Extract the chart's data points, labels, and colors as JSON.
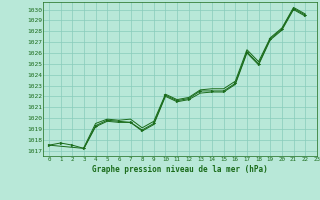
{
  "title": "Graphe pression niveau de la mer (hPa)",
  "bg_color": "#b8e8d8",
  "grid_color": "#88ccbb",
  "line_color": "#1a6b1a",
  "marker_color": "#1a6b1a",
  "xlim": [
    -0.5,
    23
  ],
  "ylim": [
    1016.5,
    1030.7
  ],
  "xticks": [
    0,
    1,
    2,
    3,
    4,
    5,
    6,
    7,
    8,
    9,
    10,
    11,
    12,
    13,
    14,
    15,
    16,
    17,
    18,
    19,
    20,
    21,
    22,
    23
  ],
  "yticks": [
    1017,
    1018,
    1019,
    1020,
    1021,
    1022,
    1023,
    1024,
    1025,
    1026,
    1027,
    1028,
    1029,
    1030
  ],
  "series1_x": [
    0,
    1,
    2,
    3,
    4,
    5,
    6,
    7,
    8,
    9,
    10,
    11,
    12,
    13,
    14,
    15,
    16,
    17,
    18,
    19,
    20,
    21,
    22
  ],
  "series1_y": [
    1017.5,
    1017.7,
    1017.5,
    1017.2,
    1019.3,
    1019.8,
    1019.7,
    1019.6,
    1018.9,
    1019.5,
    1022.1,
    1021.6,
    1021.8,
    1022.5,
    1022.5,
    1022.5,
    1023.2,
    1026.1,
    1025.0,
    1027.3,
    1028.2,
    1030.1,
    1029.5
  ],
  "series2_x": [
    3,
    4,
    5,
    6,
    7,
    8,
    9,
    10,
    11,
    12,
    13,
    14,
    15,
    16,
    17,
    18,
    19,
    20,
    21,
    22
  ],
  "series2_y": [
    1017.3,
    1019.5,
    1019.9,
    1019.8,
    1019.9,
    1019.1,
    1019.7,
    1022.2,
    1021.7,
    1021.9,
    1022.6,
    1022.7,
    1022.7,
    1023.4,
    1026.3,
    1025.2,
    1027.4,
    1028.3,
    1030.2,
    1029.6
  ],
  "series3_x": [
    0,
    3,
    4,
    5,
    6,
    7,
    8,
    9,
    10,
    11,
    12,
    13,
    14,
    15,
    16,
    17,
    18,
    19,
    20,
    21,
    22
  ],
  "series3_y": [
    1017.5,
    1017.2,
    1019.2,
    1019.7,
    1019.6,
    1019.6,
    1018.8,
    1019.4,
    1022.0,
    1021.5,
    1021.7,
    1022.3,
    1022.4,
    1022.4,
    1023.1,
    1026.0,
    1024.9,
    1027.2,
    1028.1,
    1030.0,
    1029.4
  ]
}
